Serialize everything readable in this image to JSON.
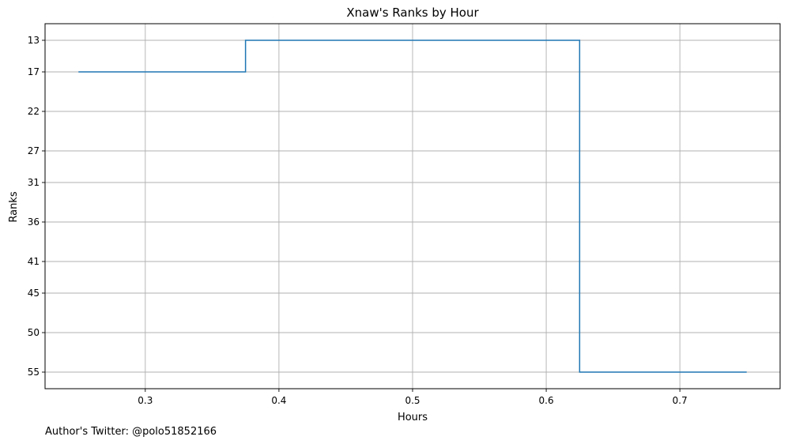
{
  "chart_data": {
    "type": "line",
    "title": "Xnaw's Ranks by Hour",
    "xlabel": "Hours",
    "ylabel": "Ranks",
    "xlim": [
      0.225,
      0.775
    ],
    "ylim": [
      57.1,
      10.9
    ],
    "x_ticks": [
      0.3,
      0.4,
      0.5,
      0.6,
      0.7
    ],
    "x_tick_labels": [
      "0.3",
      "0.4",
      "0.5",
      "0.6",
      "0.7"
    ],
    "y_ticks": [
      13,
      17,
      22,
      27,
      31,
      36,
      41,
      45,
      50,
      55
    ],
    "y_tick_labels": [
      "13",
      "17",
      "22",
      "27",
      "31",
      "36",
      "41",
      "45",
      "50",
      "55"
    ],
    "grid": true,
    "line_style": "step",
    "series": [
      {
        "x": [
          0.25,
          0.375,
          0.625,
          0.75
        ],
        "y": [
          17,
          13,
          55,
          55
        ],
        "color": "#1f77b4"
      }
    ]
  },
  "footer": {
    "credit": "Author's Twitter: @polo51852166"
  }
}
